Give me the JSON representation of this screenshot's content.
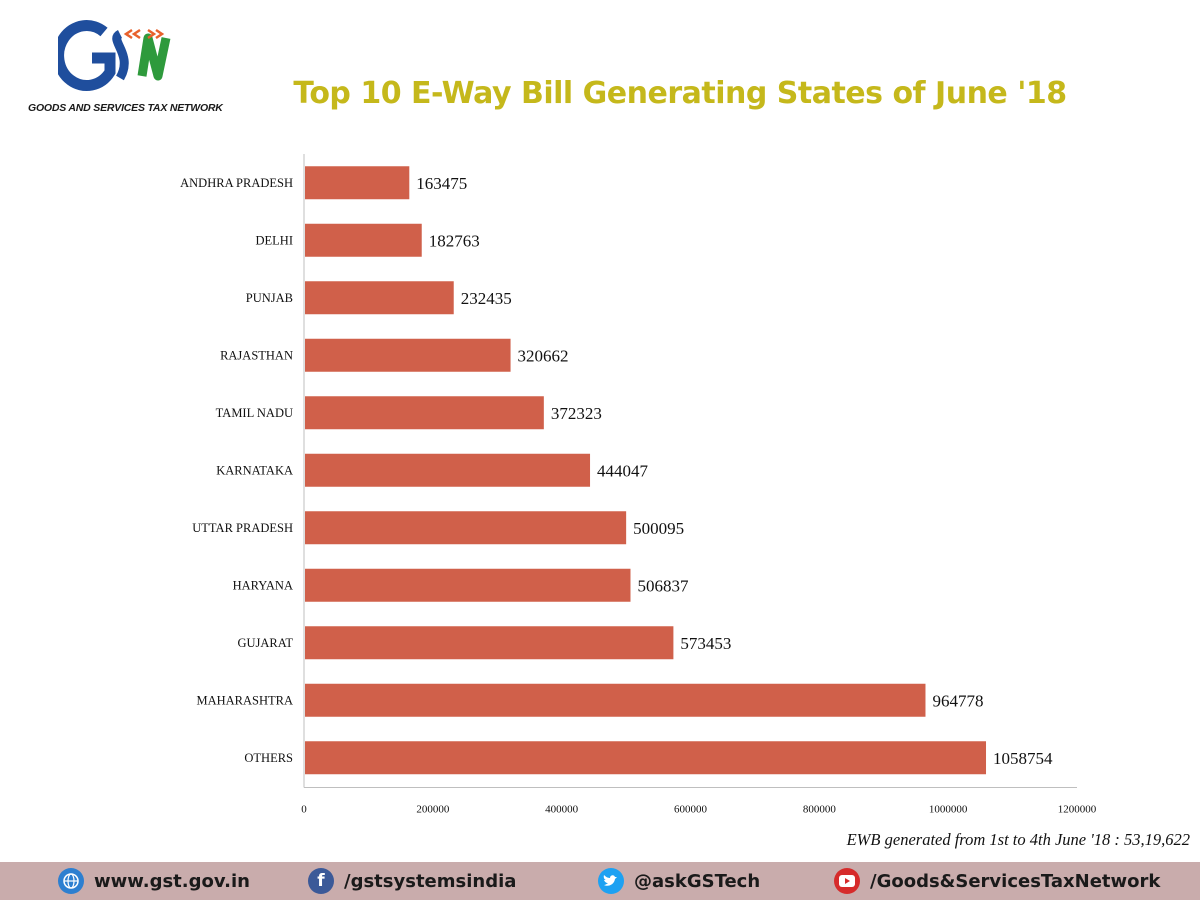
{
  "logo": {
    "name": "GSN",
    "caption": "GOODS AND SERVICES TAX NETWORK"
  },
  "footnote": "EWB generated from  1st to 4th June '18 : 53,19,622",
  "footer": {
    "website": "www.gst.gov.in",
    "facebook": "/gstsystemsindia",
    "twitter": "@askGSTech",
    "youtube": "/Goods&ServicesTaxNetwork"
  },
  "colors": {
    "bar": "#d0604a",
    "title": "#c5b81b",
    "footer_bg": "#c9acac",
    "logo_blue": "#1f4e9d",
    "logo_green": "#2e9a3c",
    "logo_orange": "#e8612c"
  },
  "chart_data": {
    "type": "bar",
    "orientation": "horizontal",
    "title": "Top 10 E-Way Bill Generating States of June '18",
    "categories": [
      "ANDHRA PRADESH",
      "DELHI",
      "PUNJAB",
      "RAJASTHAN",
      "TAMIL NADU",
      "KARNATAKA",
      "UTTAR PRADESH",
      "HARYANA",
      "GUJARAT",
      "MAHARASHTRA",
      "OTHERS"
    ],
    "values": [
      163475,
      182763,
      232435,
      320662,
      372323,
      444047,
      500095,
      506837,
      573453,
      964778,
      1058754
    ],
    "xlim": [
      0,
      1200000
    ],
    "xticks": [
      "0",
      "200000",
      "400000",
      "600000",
      "800000",
      "1000000",
      "1200000"
    ],
    "grid": false,
    "legend": "none"
  }
}
